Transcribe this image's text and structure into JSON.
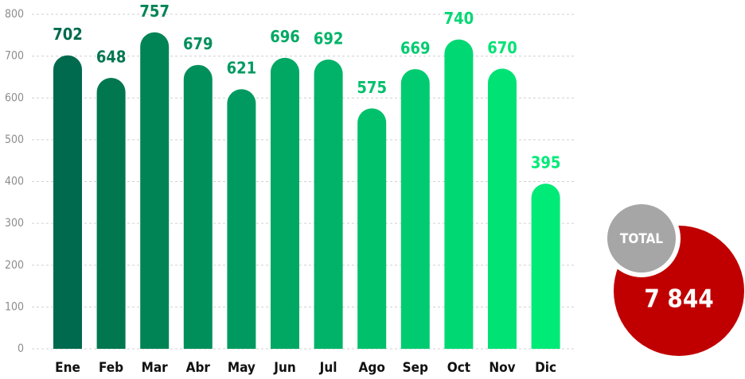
{
  "chart_data": {
    "type": "bar",
    "categories": [
      "Ene",
      "Feb",
      "Mar",
      "Abr",
      "May",
      "Jun",
      "Jul",
      "Ago",
      "Sep",
      "Oct",
      "Nov",
      "Dic"
    ],
    "values": [
      702,
      648,
      757,
      679,
      621,
      696,
      692,
      575,
      669,
      740,
      670,
      395
    ],
    "colors": [
      "#006a4e",
      "#00774f",
      "#008455",
      "#008f5b",
      "#009a60",
      "#00a864",
      "#00b368",
      "#00c06c",
      "#00cb70",
      "#00d873",
      "#00e274",
      "#00ea77"
    ],
    "ylim": [
      0,
      800
    ],
    "yticks": [
      0,
      100,
      200,
      300,
      400,
      500,
      600,
      700,
      800
    ],
    "grid": true,
    "total": {
      "label": "TOTAL",
      "value": 7844,
      "value_label": "7 844",
      "color": "#c00000"
    }
  }
}
